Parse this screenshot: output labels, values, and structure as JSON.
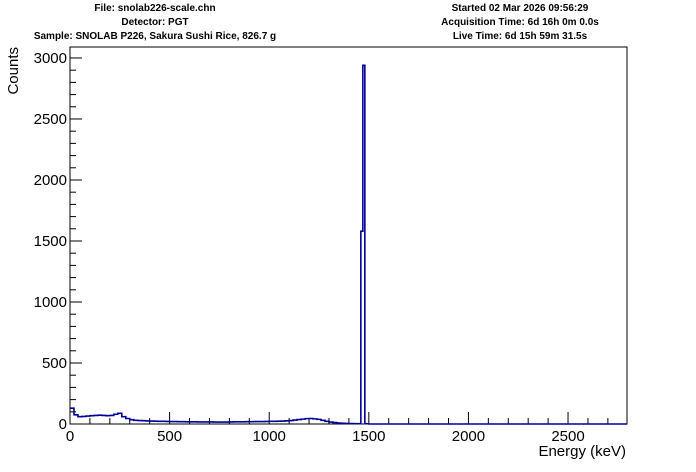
{
  "header": {
    "file": "File: snolab226-scale.chn",
    "detector": "Detector: PGT",
    "sample": "Sample: SNOLAB P226, Sakura Sushi Rice, 826.7 g",
    "started": "Started 02 Mar 2026 09:56:29",
    "acquisition_time": "Acquisition Time: 6d 16h 0m 0.0s",
    "live_time": "Live Time: 6d 15h 59m 31.5s"
  },
  "chart_data": {
    "type": "line",
    "style": "histogram-step",
    "xlabel": "Energy (keV)",
    "ylabel": "Counts",
    "xlim": [
      0,
      2796
    ],
    "ylim": [
      0,
      3090
    ],
    "x_ticks": [
      "0",
      "500",
      "1000",
      "1500",
      "2000",
      "2500"
    ],
    "y_ticks": [
      "0",
      "500",
      "1000",
      "1500",
      "2000",
      "2500",
      "3000"
    ],
    "grid": false,
    "line_color": "#000099",
    "x": [
      0,
      20,
      40,
      60,
      80,
      100,
      120,
      140,
      160,
      180,
      200,
      220,
      240,
      260,
      280,
      300,
      320,
      340,
      360,
      380,
      400,
      420,
      440,
      460,
      480,
      500,
      520,
      540,
      560,
      580,
      600,
      620,
      640,
      660,
      680,
      700,
      720,
      740,
      760,
      780,
      800,
      820,
      840,
      860,
      880,
      900,
      920,
      940,
      960,
      980,
      1000,
      1020,
      1040,
      1060,
      1080,
      1100,
      1120,
      1140,
      1160,
      1180,
      1200,
      1220,
      1240,
      1260,
      1280,
      1300,
      1320,
      1340,
      1360,
      1380,
      1400,
      1420,
      1440,
      1460,
      1470,
      1480,
      1500,
      2796
    ],
    "y": [
      130,
      75,
      60,
      62,
      65,
      68,
      70,
      72,
      70,
      68,
      70,
      80,
      88,
      60,
      45,
      35,
      30,
      28,
      27,
      25,
      24,
      23,
      22,
      22,
      21,
      20,
      20,
      19,
      19,
      18,
      18,
      18,
      17,
      17,
      17,
      17,
      16,
      16,
      16,
      16,
      17,
      18,
      18,
      18,
      19,
      19,
      20,
      20,
      20,
      21,
      22,
      22,
      23,
      24,
      26,
      28,
      32,
      36,
      40,
      44,
      45,
      42,
      38,
      30,
      22,
      16,
      12,
      8,
      6,
      5,
      4,
      3,
      3,
      1580,
      2940,
      2,
      0,
      0
    ]
  }
}
